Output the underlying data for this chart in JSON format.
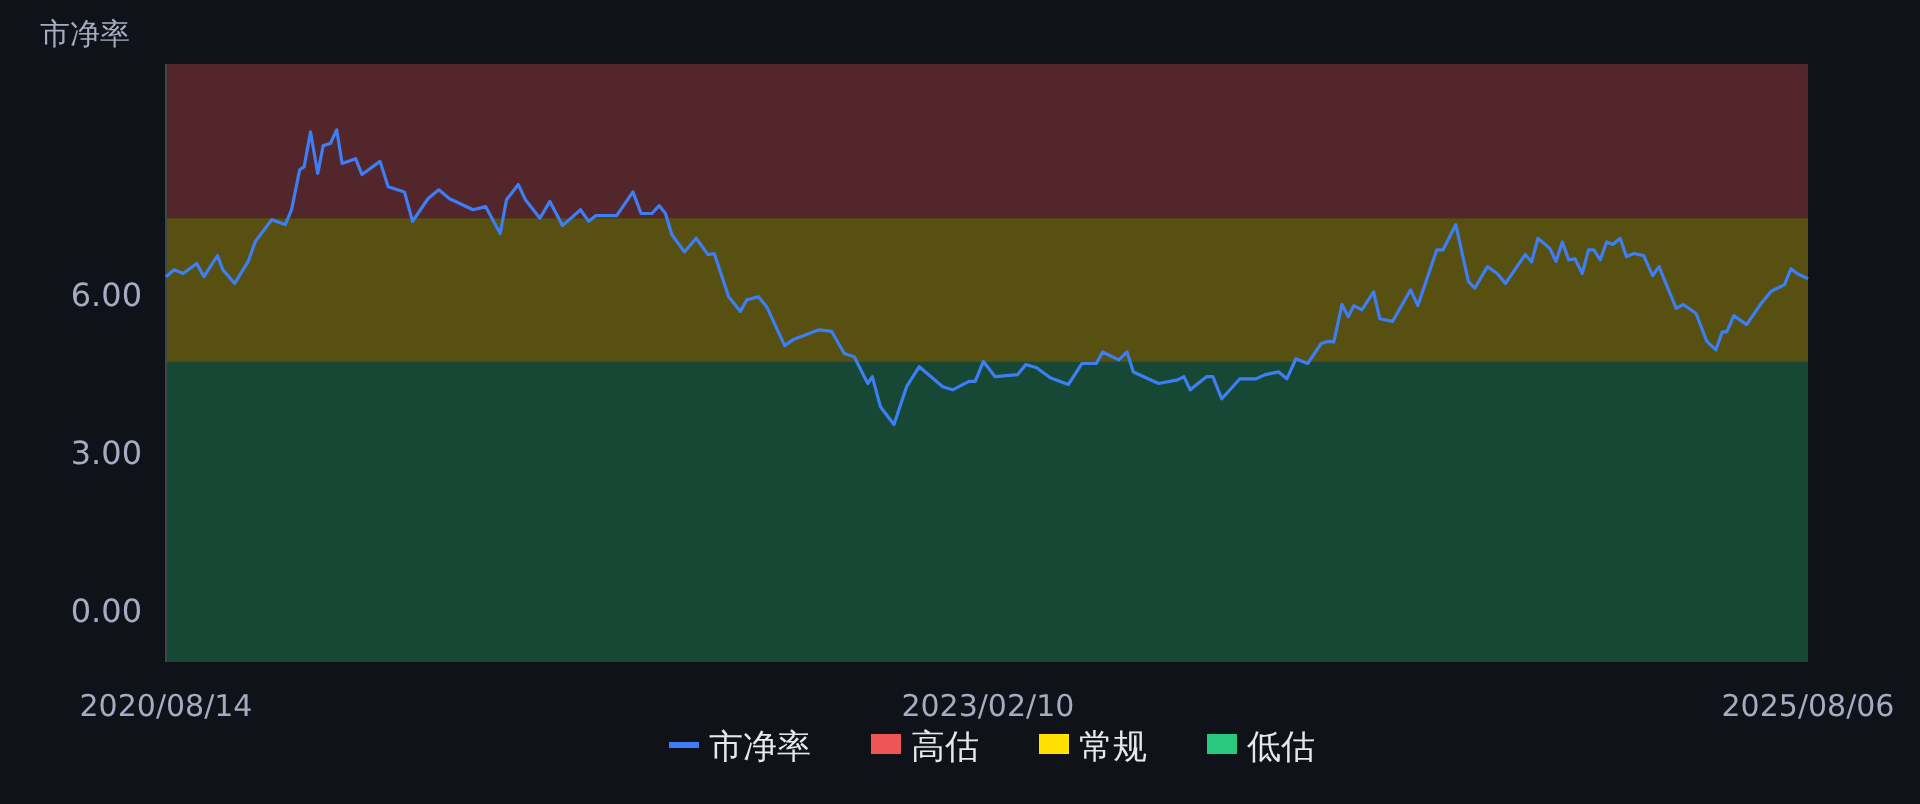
{
  "chart_data": {
    "type": "line",
    "ylabel": "市净率",
    "x": [
      "2020-08-14",
      "2020-08-23",
      "2020-09-02",
      "2020-09-17",
      "2020-09-25",
      "2020-10-10",
      "2020-10-16",
      "2020-10-29",
      "2020-11-13",
      "2020-11-21",
      "2020-12-09",
      "2020-12-24",
      "2020-12-31",
      "2021-01-09",
      "2021-01-14",
      "2021-01-21",
      "2021-01-29",
      "2021-02-04",
      "2021-02-12",
      "2021-02-19",
      "2021-02-25",
      "2021-03-12",
      "2021-03-19",
      "2021-04-08",
      "2021-04-17",
      "2021-05-05",
      "2021-05-14",
      "2021-05-31",
      "2021-06-12",
      "2021-06-24",
      "2021-07-20",
      "2021-08-03",
      "2021-08-19",
      "2021-08-26",
      "2021-09-08",
      "2021-09-16",
      "2021-10-02",
      "2021-10-13",
      "2021-10-27",
      "2021-11-16",
      "2021-11-25",
      "2021-12-03",
      "2021-12-26",
      "2022-01-13",
      "2022-01-22",
      "2022-02-03",
      "2022-02-11",
      "2022-02-18",
      "2022-02-25",
      "2022-03-11",
      "2022-03-24",
      "2022-04-06",
      "2022-04-13",
      "2022-04-29",
      "2022-05-12",
      "2022-05-19",
      "2022-06-01",
      "2022-06-10",
      "2022-06-30",
      "2022-07-09",
      "2022-08-07",
      "2022-08-21",
      "2022-09-04",
      "2022-09-15",
      "2022-09-30",
      "2022-10-05",
      "2022-10-14",
      "2022-10-29",
      "2022-11-12",
      "2022-11-26",
      "2022-12-22",
      "2023-01-02",
      "2023-01-20",
      "2023-01-27",
      "2023-02-05",
      "2023-02-18",
      "2023-03-15",
      "2023-03-24",
      "2023-04-05",
      "2023-04-20",
      "2023-05-10",
      "2023-05-25",
      "2023-06-10",
      "2023-06-17",
      "2023-07-05",
      "2023-07-14",
      "2023-07-21",
      "2023-08-18",
      "2023-09-08",
      "2023-09-15",
      "2023-09-22",
      "2023-10-10",
      "2023-10-17",
      "2023-10-27",
      "2023-11-16",
      "2023-12-04",
      "2023-12-14",
      "2023-12-29",
      "2024-01-07",
      "2024-01-17",
      "2024-01-30",
      "2024-02-14",
      "2024-02-21",
      "2024-02-28",
      "2024-03-08",
      "2024-03-15",
      "2024-03-21",
      "2024-03-30",
      "2024-04-12",
      "2024-04-19",
      "2024-05-03",
      "2024-05-23",
      "2024-05-31",
      "2024-06-21",
      "2024-06-28",
      "2024-07-12",
      "2024-07-26",
      "2024-08-02",
      "2024-08-16",
      "2024-08-27",
      "2024-09-05",
      "2024-09-27",
      "2024-10-04",
      "2024-10-11",
      "2024-10-24",
      "2024-10-31",
      "2024-11-07",
      "2024-11-14",
      "2024-11-21",
      "2024-11-29",
      "2024-12-06",
      "2024-12-12",
      "2024-12-19",
      "2024-12-26",
      "2025-01-02",
      "2025-01-10",
      "2025-01-17",
      "2025-01-25",
      "2025-02-05",
      "2025-02-15",
      "2025-02-22",
      "2025-03-13",
      "2025-03-21",
      "2025-04-04",
      "2025-04-16",
      "2025-04-26",
      "2025-05-03",
      "2025-05-08",
      "2025-05-16",
      "2025-05-30",
      "2025-06-15",
      "2025-06-26",
      "2025-07-11",
      "2025-07-18",
      "2025-07-25",
      "2025-08-06"
    ],
    "series": [
      {
        "name": "市净率",
        "color": "#3d7ef5",
        "values": [
          6.33,
          6.46,
          6.39,
          6.58,
          6.33,
          6.73,
          6.46,
          6.2,
          6.62,
          7.0,
          7.41,
          7.32,
          7.6,
          8.36,
          8.42,
          9.08,
          8.29,
          8.82,
          8.86,
          9.12,
          8.48,
          8.57,
          8.27,
          8.52,
          8.04,
          7.94,
          7.38,
          7.81,
          7.98,
          7.81,
          7.6,
          7.66,
          7.15,
          7.79,
          8.08,
          7.79,
          7.44,
          7.76,
          7.3,
          7.6,
          7.38,
          7.49,
          7.49,
          7.94,
          7.53,
          7.53,
          7.68,
          7.53,
          7.13,
          6.8,
          7.06,
          6.75,
          6.77,
          5.95,
          5.67,
          5.89,
          5.95,
          5.76,
          5.02,
          5.13,
          5.32,
          5.29,
          4.87,
          4.81,
          4.3,
          4.43,
          3.86,
          3.52,
          4.24,
          4.62,
          4.24,
          4.18,
          4.34,
          4.34,
          4.72,
          4.43,
          4.47,
          4.66,
          4.6,
          4.41,
          4.28,
          4.68,
          4.68,
          4.9,
          4.75,
          4.9,
          4.52,
          4.3,
          4.37,
          4.43,
          4.18,
          4.43,
          4.43,
          4.01,
          4.39,
          4.39,
          4.47,
          4.52,
          4.39,
          4.77,
          4.68,
          5.06,
          5.1,
          5.09,
          5.8,
          5.57,
          5.78,
          5.7,
          6.04,
          5.53,
          5.48,
          6.08,
          5.78,
          6.84,
          6.84,
          7.32,
          6.24,
          6.11,
          6.52,
          6.39,
          6.2,
          6.75,
          6.61,
          7.06,
          6.87,
          6.62,
          6.99,
          6.65,
          6.67,
          6.39,
          6.84,
          6.84,
          6.65,
          6.99,
          6.94,
          7.06,
          6.71,
          6.77,
          6.73,
          6.35,
          6.52,
          5.73,
          5.8,
          5.63,
          5.1,
          4.94,
          5.28,
          5.28,
          5.59,
          5.42,
          5.82,
          6.05,
          6.18,
          6.48,
          6.39,
          6.29
        ]
      }
    ],
    "xlim": [
      "2020-08-14",
      "2025-08-06"
    ],
    "xticks": [
      {
        "value": "2020-08-14",
        "label": "2020/08/14"
      },
      {
        "value": "2023-02-10",
        "label": "2023/02/10"
      },
      {
        "value": "2025-08-06",
        "label": "2025/08/06"
      }
    ],
    "ylim": [
      -0.99,
      10.37
    ],
    "yticks": [
      {
        "value": 0,
        "label": "0.00"
      },
      {
        "value": 3,
        "label": "3.00"
      },
      {
        "value": 6,
        "label": "6.00"
      }
    ],
    "bands": [
      {
        "axis": "y",
        "from": 7.44,
        "to": 10.37,
        "label": "高估",
        "color": "#ee5555"
      },
      {
        "axis": "y",
        "from": 4.71,
        "to": 7.44,
        "label": "常规",
        "color": "#ffe000"
      },
      {
        "axis": "y",
        "from": -0.99,
        "to": 4.71,
        "label": "低估",
        "color": "#2ac77e"
      }
    ],
    "legend": "bottom",
    "marker": "none",
    "line_style": "solid"
  }
}
